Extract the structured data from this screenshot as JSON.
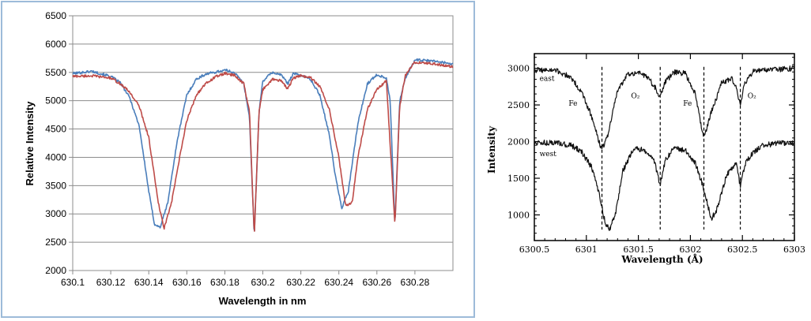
{
  "chart_data": [
    {
      "type": "line",
      "title": "",
      "xlabel": "Wavelength in nm",
      "ylabel": "Relative Intensity",
      "xlim": [
        630.1,
        630.3
      ],
      "ylim": [
        2000,
        6500
      ],
      "x_ticks": [
        "630.1",
        "630.12",
        "630.14",
        "630.16",
        "630.18",
        "630.2",
        "630.22",
        "630.24",
        "630.26",
        "630.28"
      ],
      "y_ticks": [
        "2000",
        "2500",
        "3000",
        "3500",
        "4000",
        "4500",
        "5000",
        "5500",
        "6000",
        "6500"
      ],
      "grid": "horizontal",
      "legend": "none",
      "series": [
        {
          "color": "#4a7ebb",
          "x": [
            630.1,
            630.11,
            630.12,
            630.125,
            630.13,
            630.135,
            630.14,
            630.143,
            630.146,
            630.15,
            630.155,
            630.16,
            630.165,
            630.17,
            630.18,
            630.185,
            630.19,
            630.193,
            630.1955,
            630.198,
            630.2,
            630.205,
            630.21,
            630.213,
            630.216,
            630.22,
            630.225,
            630.23,
            630.235,
            630.238,
            630.2415,
            630.245,
            630.25,
            630.255,
            630.26,
            630.265,
            630.267,
            630.2695,
            630.272,
            630.275,
            630.28,
            630.29,
            630.3
          ],
          "y": [
            5480,
            5520,
            5430,
            5320,
            5050,
            4550,
            3400,
            2820,
            2760,
            3200,
            4300,
            5100,
            5380,
            5470,
            5540,
            5500,
            5300,
            4700,
            2600,
            4800,
            5350,
            5500,
            5450,
            5300,
            5480,
            5450,
            5380,
            5100,
            4400,
            3700,
            3100,
            3400,
            4600,
            5300,
            5460,
            5400,
            5000,
            2800,
            5000,
            5400,
            5720,
            5700,
            5650
          ]
        },
        {
          "color": "#be4b48",
          "x": [
            630.1,
            630.11,
            630.12,
            630.125,
            630.13,
            630.135,
            630.14,
            630.145,
            630.148,
            630.152,
            630.156,
            630.16,
            630.165,
            630.17,
            630.175,
            630.18,
            630.185,
            630.19,
            630.193,
            630.1955,
            630.198,
            630.2,
            630.205,
            630.21,
            630.213,
            630.216,
            630.22,
            630.225,
            630.23,
            630.235,
            630.24,
            630.2435,
            630.247,
            630.25,
            630.255,
            630.26,
            630.265,
            630.2695,
            630.272,
            630.275,
            630.28,
            630.29,
            630.3
          ],
          "y": [
            5430,
            5440,
            5400,
            5300,
            5150,
            4900,
            4350,
            3200,
            2740,
            3200,
            3950,
            4650,
            5100,
            5300,
            5420,
            5480,
            5450,
            5300,
            4800,
            2600,
            4800,
            5200,
            5380,
            5350,
            5200,
            5400,
            5440,
            5410,
            5250,
            4850,
            4000,
            3150,
            3200,
            4000,
            4850,
            5200,
            5350,
            2800,
            4900,
            5450,
            5680,
            5650,
            5600
          ]
        }
      ]
    },
    {
      "type": "line",
      "title": "",
      "xlabel": "Wavelength (Å)",
      "ylabel": "Intensity",
      "xlim": [
        6300.5,
        6303
      ],
      "ylim": [
        650,
        3200
      ],
      "x_ticks": [
        "6300.5",
        "6301",
        "6301.5",
        "6302",
        "6302.5",
        "6303"
      ],
      "y_ticks": [
        "1000",
        "1500",
        "2000",
        "2500",
        "3000"
      ],
      "grid": "none",
      "legend": "none",
      "dashed_lines_x": [
        6301.15,
        6301.71,
        6302.13,
        6302.48
      ],
      "annotations": [
        {
          "text": "east",
          "x": 6300.55,
          "y": 2830
        },
        {
          "text": "Fe",
          "x": 6300.83,
          "y": 2490
        },
        {
          "text": "O₂",
          "x": 6301.43,
          "y": 2590
        },
        {
          "text": "Fe",
          "x": 6301.93,
          "y": 2490
        },
        {
          "text": "O₂",
          "x": 6302.55,
          "y": 2590
        },
        {
          "text": "west",
          "x": 6300.55,
          "y": 1800
        }
      ],
      "series": [
        {
          "name": "east",
          "color": "#111111",
          "x": [
            6300.5,
            6300.7,
            6300.85,
            6300.95,
            6301.05,
            6301.12,
            6301.15,
            6301.2,
            6301.3,
            6301.4,
            6301.5,
            6301.6,
            6301.67,
            6301.71,
            6301.75,
            6301.85,
            6301.95,
            6302.05,
            6302.1,
            6302.13,
            6302.2,
            6302.3,
            6302.4,
            6302.45,
            6302.48,
            6302.52,
            6302.6,
            6302.7,
            6302.8,
            6303
          ],
          "y": [
            2980,
            2970,
            2880,
            2680,
            2350,
            2000,
            1900,
            2050,
            2700,
            2920,
            2950,
            2860,
            2720,
            2600,
            2800,
            2950,
            2930,
            2650,
            2250,
            2050,
            2400,
            2800,
            2860,
            2700,
            2470,
            2800,
            2950,
            2990,
            2980,
            3000
          ]
        },
        {
          "name": "west",
          "color": "#111111",
          "x": [
            6300.5,
            6300.7,
            6300.85,
            6300.95,
            6301.05,
            6301.12,
            6301.18,
            6301.22,
            6301.28,
            6301.35,
            6301.45,
            6301.55,
            6301.65,
            6301.71,
            6301.76,
            6301.85,
            6301.95,
            6302.05,
            6302.12,
            6302.2,
            6302.25,
            6302.35,
            6302.44,
            6302.48,
            6302.53,
            6302.6,
            6302.7,
            6302.85,
            6303
          ],
          "y": [
            1990,
            1980,
            1950,
            1870,
            1650,
            1300,
            900,
            800,
            1000,
            1600,
            1890,
            1900,
            1750,
            1400,
            1750,
            1920,
            1880,
            1700,
            1400,
            950,
            1050,
            1550,
            1700,
            1400,
            1700,
            1850,
            1950,
            1980,
            1990
          ]
        }
      ]
    }
  ]
}
